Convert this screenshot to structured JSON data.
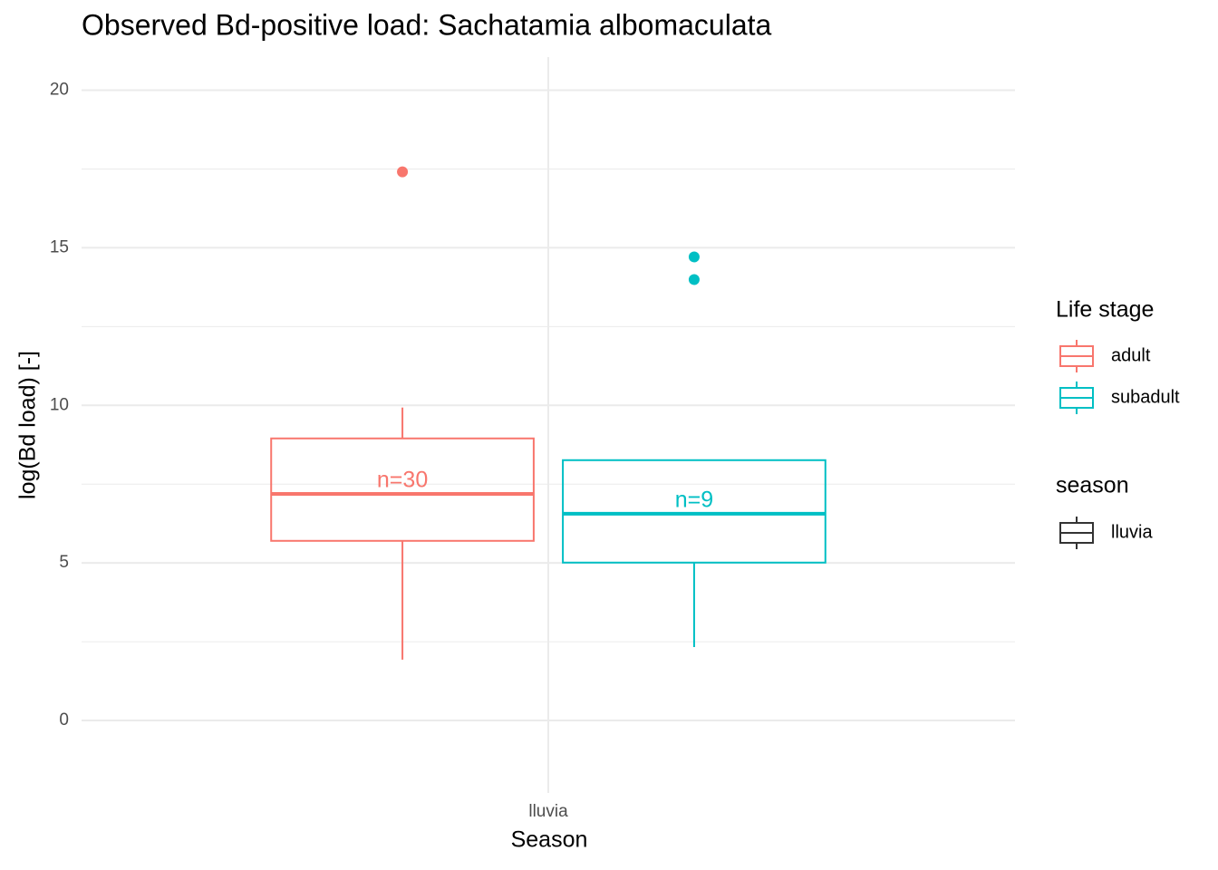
{
  "chart_data": {
    "type": "boxplot",
    "title": "Observed Bd-positive load: Sachatamia albomaculata",
    "x_label": "Season",
    "y_label": "log(Bd load) [-]",
    "categories": [
      "lluvia"
    ],
    "ylim": [
      -2.3,
      21.05
    ],
    "yticks": [
      0,
      5,
      10,
      15,
      20
    ],
    "y_minor_grid": [
      2.5,
      7.5,
      12.5,
      17.5
    ],
    "grid": true,
    "legend_position": "right",
    "series": [
      {
        "name": "adult",
        "color": "#F8766D",
        "boxes": [
          {
            "whisker_low": 1.93,
            "q1": 5.7,
            "median": 7.19,
            "q3": 8.95,
            "whisker_high": 9.93,
            "outliers": [
              17.41
            ],
            "label": "n=30"
          }
        ]
      },
      {
        "name": "subadult",
        "color": "#00BFC4",
        "boxes": [
          {
            "whisker_low": 2.33,
            "q1": 5.01,
            "median": 6.56,
            "q3": 8.26,
            "whisker_high": 8.26,
            "outliers": [
              14.71,
              13.99
            ],
            "label": "n=9"
          }
        ]
      }
    ],
    "legends": [
      {
        "title": "Life stage"
      },
      {
        "title": "season",
        "entries": [
          "lluvia"
        ],
        "color": "#333333"
      }
    ]
  }
}
